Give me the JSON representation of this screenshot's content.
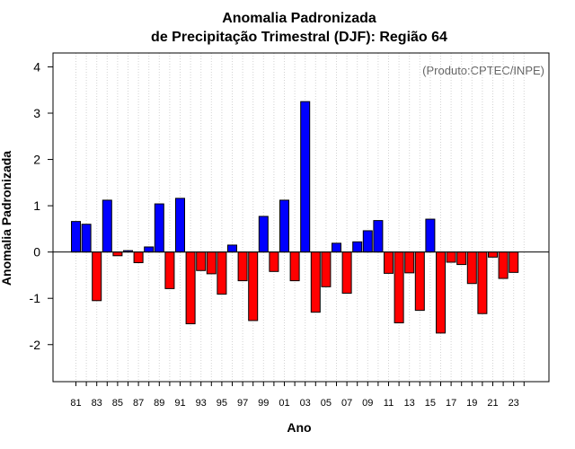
{
  "chart_data": {
    "type": "bar",
    "title": [
      "Anomalia Padronizada",
      "de Precipitação Trimestral (DJF): Região 64"
    ],
    "ylabel": "Anomalia Padronizada",
    "xlabel": "Ano",
    "credit": "(Produto:CPTEC/INPE)",
    "ylim": [
      -2.8,
      4.3
    ],
    "yticks": [
      -2,
      -1,
      0,
      1,
      2,
      3,
      4
    ],
    "tick_labels": [
      "81",
      "83",
      "85",
      "87",
      "89",
      "91",
      "93",
      "95",
      "97",
      "99",
      "01",
      "03",
      "05",
      "07",
      "09",
      "11",
      "13",
      "15",
      "17",
      "19",
      "21",
      "23"
    ],
    "categories": [
      "1981",
      "1982",
      "1983",
      "1984",
      "1985",
      "1986",
      "1987",
      "1988",
      "1989",
      "1990",
      "1991",
      "1992",
      "1993",
      "1994",
      "1995",
      "1996",
      "1997",
      "1998",
      "1999",
      "2000",
      "2001",
      "2002",
      "2003",
      "2004",
      "2005",
      "2006",
      "2007",
      "2008",
      "2009",
      "2010",
      "2011",
      "2012",
      "2013",
      "2014",
      "2015",
      "2016",
      "2017",
      "2018",
      "2019",
      "2020",
      "2021",
      "2022",
      "2023",
      "2024"
    ],
    "values": [
      0.66,
      0.6,
      -1.05,
      1.12,
      -0.08,
      0.03,
      -0.23,
      0.11,
      1.04,
      -0.79,
      1.16,
      -1.55,
      -0.4,
      -0.47,
      -0.91,
      0.15,
      -0.62,
      -1.48,
      0.77,
      -0.42,
      1.12,
      -0.62,
      3.25,
      -1.3,
      -0.75,
      0.19,
      -0.89,
      0.22,
      0.46,
      0.68,
      -0.46,
      -1.53,
      -0.45,
      -1.26,
      0.71,
      -1.75,
      -0.22,
      -0.27,
      -0.68,
      -1.33,
      -0.11,
      -0.57,
      -0.44,
      null
    ],
    "colors": {
      "positive": "#0000ff",
      "negative": "#ff0000"
    }
  }
}
